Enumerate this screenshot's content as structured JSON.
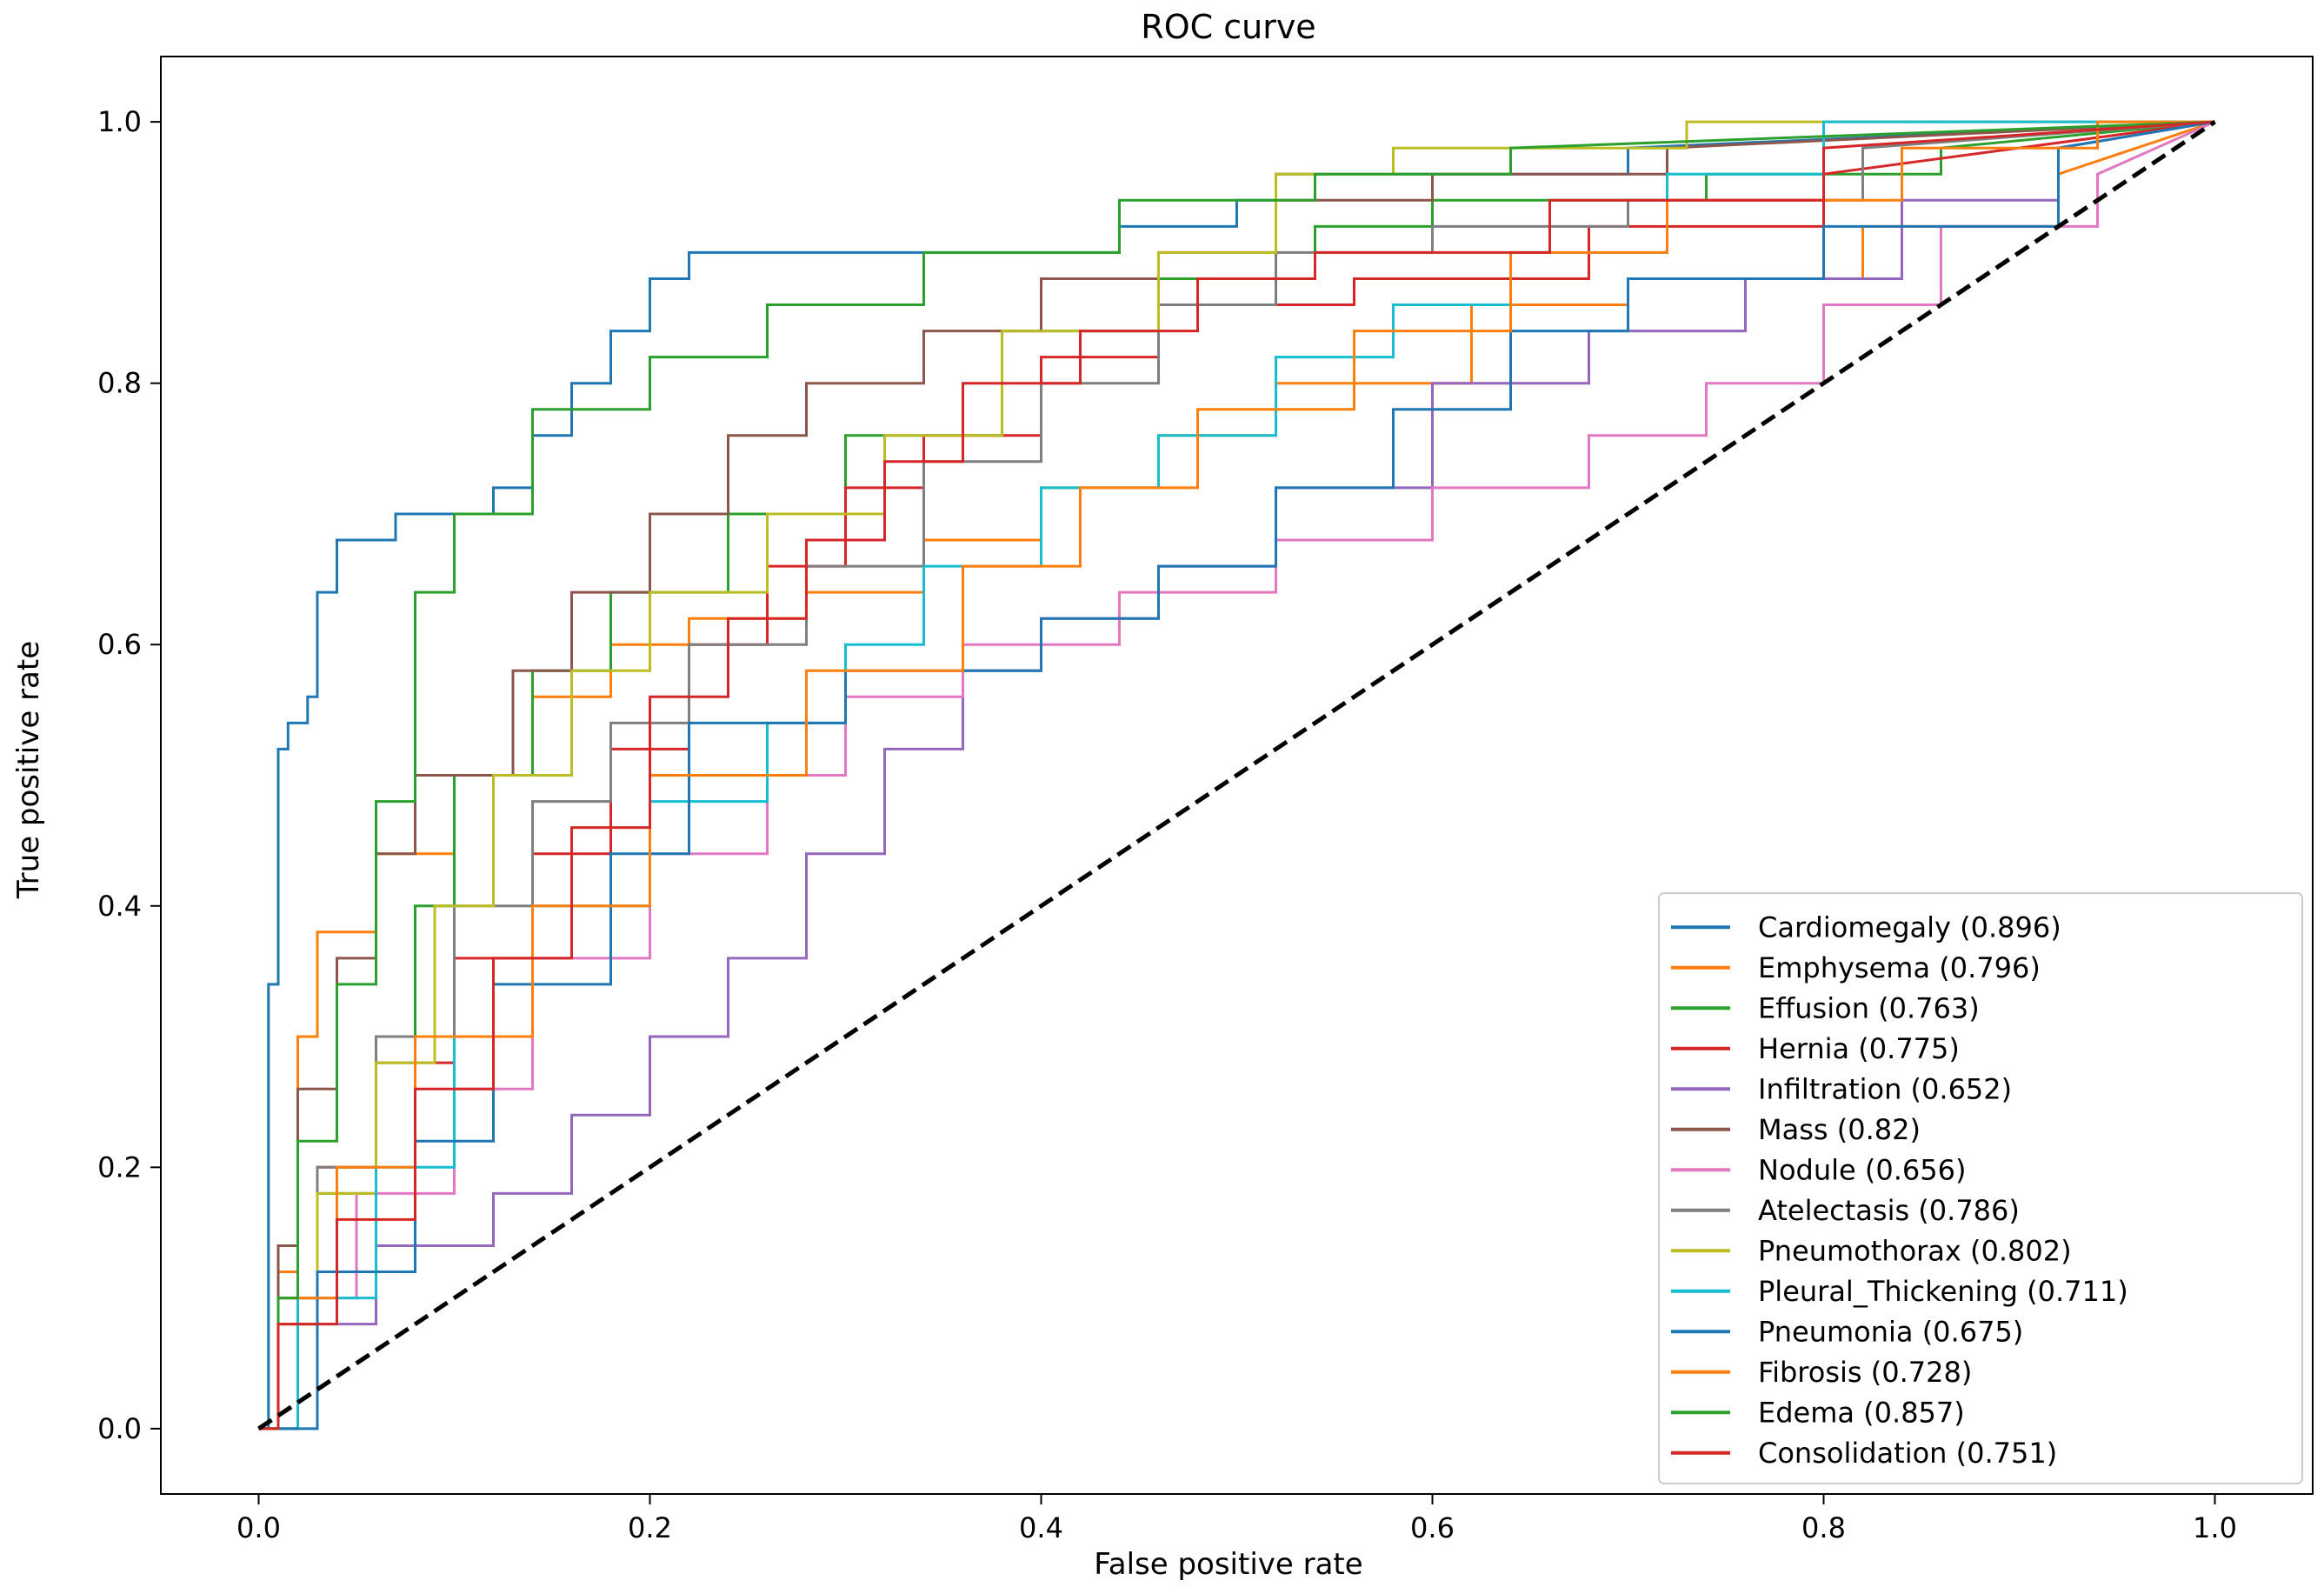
{
  "chart_data": {
    "type": "line",
    "title": "ROC curve",
    "xlabel": "False positive rate",
    "ylabel": "True positive rate",
    "xlim": [
      -0.05,
      1.05
    ],
    "ylim": [
      -0.05,
      1.05
    ],
    "xticks": [
      0.0,
      0.2,
      0.4,
      0.6,
      0.8,
      1.0
    ],
    "yticks": [
      0.0,
      0.2,
      0.4,
      0.6,
      0.8,
      1.0
    ],
    "xtick_labels": [
      "0.0",
      "0.2",
      "0.4",
      "0.6",
      "0.8",
      "1.0"
    ],
    "ytick_labels": [
      "0.0",
      "0.2",
      "0.4",
      "0.6",
      "0.8",
      "1.0"
    ],
    "grid": false,
    "legend_position": "lower-right",
    "baseline": {
      "x": [
        0,
        1
      ],
      "y": [
        0,
        1
      ],
      "color": "#000000",
      "style": "dashed"
    },
    "series": [
      {
        "name": "Cardiomegaly (0.896)",
        "color": "#1f77b4",
        "x": [
          0,
          0.005,
          0.005,
          0.01,
          0.01,
          0.015,
          0.015,
          0.025,
          0.025,
          0.03,
          0.03,
          0.04,
          0.04,
          0.07,
          0.07,
          0.12,
          0.12,
          0.14,
          0.14,
          0.16,
          0.16,
          0.18,
          0.18,
          0.2,
          0.2,
          0.22,
          0.22,
          0.27,
          0.27,
          0.44,
          0.44,
          0.5,
          0.5,
          0.52,
          0.52,
          0.7,
          0.7,
          1.0
        ],
        "y": [
          0,
          0,
          0.34,
          0.34,
          0.52,
          0.52,
          0.54,
          0.54,
          0.56,
          0.56,
          0.64,
          0.64,
          0.68,
          0.68,
          0.7,
          0.7,
          0.72,
          0.72,
          0.76,
          0.76,
          0.8,
          0.8,
          0.84,
          0.84,
          0.88,
          0.88,
          0.9,
          0.9,
          0.9,
          0.9,
          0.92,
          0.92,
          0.94,
          0.94,
          0.96,
          0.96,
          0.98,
          1.0
        ]
      },
      {
        "name": "Emphysema (0.796)",
        "color": "#ff7f0e",
        "x": [
          0,
          0.01,
          0.01,
          0.02,
          0.02,
          0.03,
          0.03,
          0.06,
          0.06,
          0.1,
          0.1,
          0.14,
          0.14,
          0.18,
          0.18,
          0.22,
          0.22,
          0.28,
          0.28,
          0.34,
          0.34,
          0.4,
          0.4,
          0.46,
          0.46,
          0.52,
          0.52,
          0.62,
          0.62,
          0.7,
          0.7,
          0.82,
          0.82,
          0.92,
          0.92,
          1.0
        ],
        "y": [
          0,
          0,
          0.12,
          0.12,
          0.3,
          0.3,
          0.38,
          0.38,
          0.44,
          0.44,
          0.5,
          0.5,
          0.56,
          0.56,
          0.6,
          0.6,
          0.62,
          0.62,
          0.64,
          0.64,
          0.68,
          0.68,
          0.72,
          0.72,
          0.76,
          0.76,
          0.8,
          0.8,
          0.86,
          0.86,
          0.88,
          0.88,
          0.92,
          0.92,
          0.96,
          1.0
        ]
      },
      {
        "name": "Effusion (0.763)",
        "color": "#2ca02c",
        "x": [
          0,
          0.01,
          0.01,
          0.03,
          0.03,
          0.06,
          0.06,
          0.08,
          0.08,
          0.1,
          0.1,
          0.14,
          0.14,
          0.18,
          0.18,
          0.24,
          0.24,
          0.3,
          0.3,
          0.38,
          0.38,
          0.46,
          0.46,
          0.54,
          0.54,
          0.6,
          0.6,
          0.74,
          0.74,
          0.86,
          0.86,
          1.0
        ],
        "y": [
          0,
          0,
          0.08,
          0.08,
          0.18,
          0.18,
          0.3,
          0.3,
          0.4,
          0.4,
          0.5,
          0.5,
          0.58,
          0.58,
          0.64,
          0.64,
          0.7,
          0.7,
          0.76,
          0.76,
          0.84,
          0.84,
          0.88,
          0.88,
          0.92,
          0.92,
          0.94,
          0.94,
          0.96,
          0.96,
          0.98,
          1.0
        ]
      },
      {
        "name": "Hernia (0.775)",
        "color": "#d62728",
        "x": [
          0,
          0.01,
          0.01,
          0.03,
          0.03,
          0.06,
          0.06,
          0.1,
          0.1,
          0.14,
          0.14,
          0.18,
          0.18,
          0.22,
          0.22,
          0.26,
          0.26,
          0.3,
          0.3,
          0.34,
          0.34,
          0.4,
          0.4,
          0.46,
          0.46,
          0.56,
          0.56,
          0.68,
          0.68,
          0.8,
          0.8,
          1.0
        ],
        "y": [
          0,
          0,
          0.1,
          0.1,
          0.2,
          0.2,
          0.28,
          0.28,
          0.36,
          0.36,
          0.44,
          0.44,
          0.52,
          0.52,
          0.6,
          0.6,
          0.66,
          0.66,
          0.72,
          0.72,
          0.76,
          0.76,
          0.82,
          0.82,
          0.86,
          0.86,
          0.88,
          0.88,
          0.92,
          0.92,
          0.96,
          1.0
        ]
      },
      {
        "name": "Infiltration (0.652)",
        "color": "#9467bd",
        "x": [
          0,
          0.02,
          0.02,
          0.06,
          0.06,
          0.12,
          0.12,
          0.16,
          0.16,
          0.2,
          0.2,
          0.24,
          0.24,
          0.28,
          0.28,
          0.32,
          0.32,
          0.36,
          0.36,
          0.4,
          0.4,
          0.46,
          0.46,
          0.52,
          0.52,
          0.6,
          0.6,
          0.68,
          0.68,
          0.76,
          0.76,
          0.84,
          0.84,
          0.92,
          0.92,
          1.0
        ],
        "y": [
          0,
          0,
          0.08,
          0.08,
          0.14,
          0.14,
          0.18,
          0.18,
          0.24,
          0.24,
          0.3,
          0.3,
          0.36,
          0.36,
          0.44,
          0.44,
          0.52,
          0.52,
          0.58,
          0.58,
          0.62,
          0.62,
          0.66,
          0.66,
          0.72,
          0.72,
          0.8,
          0.8,
          0.84,
          0.84,
          0.88,
          0.88,
          0.94,
          0.94,
          0.98,
          1.0
        ]
      },
      {
        "name": "Mass (0.82)",
        "color": "#8c564b",
        "x": [
          0,
          0.01,
          0.01,
          0.02,
          0.02,
          0.04,
          0.04,
          0.06,
          0.06,
          0.08,
          0.08,
          0.13,
          0.13,
          0.16,
          0.16,
          0.2,
          0.2,
          0.24,
          0.24,
          0.28,
          0.28,
          0.34,
          0.34,
          0.4,
          0.4,
          0.46,
          0.46,
          0.52,
          0.52,
          0.6,
          0.6,
          0.72,
          0.72,
          1.0
        ],
        "y": [
          0,
          0,
          0.14,
          0.14,
          0.26,
          0.26,
          0.36,
          0.36,
          0.44,
          0.44,
          0.5,
          0.5,
          0.58,
          0.58,
          0.64,
          0.64,
          0.7,
          0.7,
          0.76,
          0.76,
          0.8,
          0.8,
          0.84,
          0.84,
          0.88,
          0.88,
          0.9,
          0.9,
          0.94,
          0.94,
          0.96,
          0.96,
          0.98,
          1.0
        ]
      },
      {
        "name": "Nodule (0.656)",
        "color": "#e377c2",
        "x": [
          0,
          0.02,
          0.02,
          0.05,
          0.05,
          0.1,
          0.1,
          0.14,
          0.14,
          0.2,
          0.2,
          0.26,
          0.26,
          0.3,
          0.3,
          0.36,
          0.36,
          0.44,
          0.44,
          0.52,
          0.52,
          0.6,
          0.6,
          0.68,
          0.68,
          0.74,
          0.74,
          0.8,
          0.8,
          0.86,
          0.86,
          0.94,
          0.94,
          1.0
        ],
        "y": [
          0,
          0,
          0.1,
          0.1,
          0.18,
          0.18,
          0.26,
          0.26,
          0.36,
          0.36,
          0.44,
          0.44,
          0.5,
          0.5,
          0.56,
          0.56,
          0.6,
          0.6,
          0.64,
          0.64,
          0.68,
          0.68,
          0.72,
          0.72,
          0.76,
          0.76,
          0.8,
          0.8,
          0.86,
          0.86,
          0.92,
          0.92,
          0.96,
          1.0
        ]
      },
      {
        "name": "Atelectasis (0.786)",
        "color": "#7f7f7f",
        "x": [
          0,
          0.01,
          0.01,
          0.03,
          0.03,
          0.06,
          0.06,
          0.1,
          0.1,
          0.14,
          0.14,
          0.18,
          0.18,
          0.22,
          0.22,
          0.28,
          0.28,
          0.34,
          0.34,
          0.4,
          0.4,
          0.46,
          0.46,
          0.52,
          0.52,
          0.6,
          0.6,
          0.7,
          0.7,
          0.82,
          0.82,
          1.0
        ],
        "y": [
          0,
          0,
          0.1,
          0.1,
          0.2,
          0.2,
          0.3,
          0.3,
          0.4,
          0.4,
          0.48,
          0.48,
          0.54,
          0.54,
          0.6,
          0.6,
          0.66,
          0.66,
          0.74,
          0.74,
          0.8,
          0.8,
          0.86,
          0.86,
          0.9,
          0.9,
          0.92,
          0.92,
          0.94,
          0.94,
          0.98,
          1.0
        ]
      },
      {
        "name": "Pneumothorax (0.802)",
        "color": "#bcbd22",
        "x": [
          0,
          0.01,
          0.01,
          0.03,
          0.03,
          0.06,
          0.06,
          0.09,
          0.09,
          0.12,
          0.12,
          0.16,
          0.16,
          0.2,
          0.2,
          0.26,
          0.26,
          0.32,
          0.32,
          0.38,
          0.38,
          0.46,
          0.46,
          0.52,
          0.52,
          0.58,
          0.58,
          0.73,
          0.73,
          1.0
        ],
        "y": [
          0,
          0,
          0.08,
          0.08,
          0.18,
          0.18,
          0.28,
          0.28,
          0.4,
          0.4,
          0.5,
          0.5,
          0.58,
          0.58,
          0.64,
          0.64,
          0.7,
          0.7,
          0.76,
          0.76,
          0.84,
          0.84,
          0.9,
          0.9,
          0.96,
          0.96,
          0.98,
          0.98,
          1.0,
          1.0
        ]
      },
      {
        "name": "Pleural_Thickening (0.711)",
        "color": "#17becf",
        "x": [
          0,
          0.02,
          0.02,
          0.06,
          0.06,
          0.1,
          0.1,
          0.14,
          0.14,
          0.2,
          0.2,
          0.26,
          0.26,
          0.3,
          0.3,
          0.34,
          0.34,
          0.4,
          0.4,
          0.46,
          0.46,
          0.52,
          0.52,
          0.58,
          0.58,
          0.64,
          0.64,
          0.72,
          0.72,
          0.8,
          0.8,
          1.0
        ],
        "y": [
          0,
          0,
          0.1,
          0.1,
          0.2,
          0.2,
          0.3,
          0.3,
          0.4,
          0.4,
          0.48,
          0.48,
          0.54,
          0.54,
          0.6,
          0.6,
          0.66,
          0.66,
          0.72,
          0.72,
          0.76,
          0.76,
          0.82,
          0.82,
          0.86,
          0.86,
          0.9,
          0.9,
          0.96,
          0.96,
          1.0,
          1.0
        ]
      },
      {
        "name": "Pneumonia (0.675)",
        "color": "#1f77b4",
        "x": [
          0,
          0.03,
          0.03,
          0.08,
          0.08,
          0.12,
          0.12,
          0.18,
          0.18,
          0.22,
          0.22,
          0.3,
          0.3,
          0.4,
          0.4,
          0.46,
          0.46,
          0.52,
          0.52,
          0.58,
          0.58,
          0.64,
          0.64,
          0.7,
          0.7,
          0.8,
          0.8,
          0.92,
          0.92,
          1.0
        ],
        "y": [
          0,
          0,
          0.12,
          0.12,
          0.22,
          0.22,
          0.34,
          0.34,
          0.44,
          0.44,
          0.54,
          0.54,
          0.58,
          0.58,
          0.62,
          0.62,
          0.66,
          0.66,
          0.72,
          0.72,
          0.78,
          0.78,
          0.84,
          0.84,
          0.88,
          0.88,
          0.92,
          0.92,
          0.98,
          1.0
        ]
      },
      {
        "name": "Fibrosis (0.728)",
        "color": "#ff7f0e",
        "x": [
          0,
          0.01,
          0.01,
          0.04,
          0.04,
          0.08,
          0.08,
          0.14,
          0.14,
          0.2,
          0.2,
          0.28,
          0.28,
          0.36,
          0.36,
          0.42,
          0.42,
          0.48,
          0.48,
          0.56,
          0.56,
          0.64,
          0.64,
          0.72,
          0.72,
          0.84,
          0.84,
          0.94,
          0.94,
          1.0
        ],
        "y": [
          0,
          0,
          0.1,
          0.1,
          0.2,
          0.2,
          0.3,
          0.3,
          0.4,
          0.4,
          0.5,
          0.5,
          0.58,
          0.58,
          0.66,
          0.66,
          0.72,
          0.72,
          0.78,
          0.78,
          0.84,
          0.84,
          0.9,
          0.9,
          0.94,
          0.94,
          0.98,
          0.98,
          1.0,
          1.0
        ]
      },
      {
        "name": "Edema (0.857)",
        "color": "#2ca02c",
        "x": [
          0,
          0.01,
          0.01,
          0.02,
          0.02,
          0.04,
          0.04,
          0.06,
          0.06,
          0.08,
          0.08,
          0.1,
          0.1,
          0.14,
          0.14,
          0.2,
          0.2,
          0.26,
          0.26,
          0.34,
          0.34,
          0.44,
          0.44,
          0.54,
          0.54,
          0.64,
          0.64,
          1.0
        ],
        "y": [
          0,
          0,
          0.1,
          0.1,
          0.22,
          0.22,
          0.34,
          0.34,
          0.48,
          0.48,
          0.64,
          0.64,
          0.7,
          0.7,
          0.78,
          0.78,
          0.82,
          0.82,
          0.86,
          0.86,
          0.9,
          0.9,
          0.94,
          0.94,
          0.96,
          0.96,
          0.98,
          1.0
        ]
      },
      {
        "name": "Consolidation (0.751)",
        "color": "#d62728",
        "x": [
          0,
          0.01,
          0.01,
          0.04,
          0.04,
          0.08,
          0.08,
          0.12,
          0.12,
          0.16,
          0.16,
          0.2,
          0.2,
          0.24,
          0.24,
          0.28,
          0.28,
          0.32,
          0.32,
          0.36,
          0.36,
          0.42,
          0.42,
          0.48,
          0.48,
          0.54,
          0.54,
          0.66,
          0.66,
          0.8,
          0.8,
          1.0
        ],
        "y": [
          0,
          0,
          0.08,
          0.08,
          0.16,
          0.16,
          0.26,
          0.26,
          0.36,
          0.36,
          0.46,
          0.46,
          0.56,
          0.56,
          0.62,
          0.62,
          0.68,
          0.68,
          0.74,
          0.74,
          0.8,
          0.8,
          0.84,
          0.84,
          0.88,
          0.88,
          0.9,
          0.9,
          0.94,
          0.94,
          0.98,
          1.0
        ]
      }
    ]
  }
}
